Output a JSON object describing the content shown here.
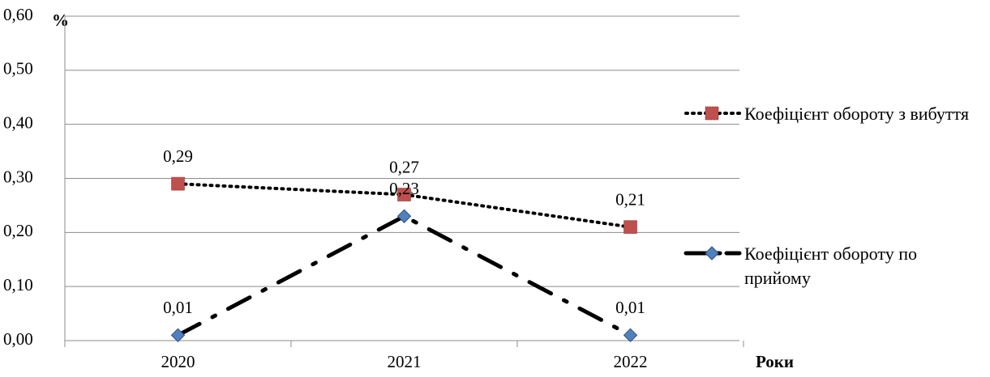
{
  "chart_data": {
    "type": "line",
    "y_unit": "%",
    "x_label": "Роки",
    "categories": [
      "2020",
      "2021",
      "2022"
    ],
    "series": [
      {
        "name": "Коефіцієнт обороту з вибуття",
        "color": "#c0504d",
        "line_color": "#000000",
        "linestyle": "dotted",
        "marker": "square",
        "values": [
          0.29,
          0.27,
          0.21
        ],
        "value_labels": [
          "0,29",
          "0,27",
          "0,21"
        ]
      },
      {
        "name": "Коефіцієнт обороту по прийому",
        "color": "#4f81bd",
        "line_color": "#000000",
        "linestyle": "dashdot",
        "marker": "diamond",
        "values": [
          0.01,
          0.23,
          0.01
        ],
        "value_labels": [
          "0,01",
          "0,23",
          "0,01"
        ]
      }
    ],
    "ylim": [
      0,
      0.6
    ],
    "yticks": [
      {
        "value": 0,
        "label": "0,00"
      },
      {
        "value": 0.1,
        "label": "0,10"
      },
      {
        "value": 0.2,
        "label": "0,20"
      },
      {
        "value": 0.3,
        "label": "0,30"
      },
      {
        "value": 0.4,
        "label": "0,40"
      },
      {
        "value": 0.5,
        "label": "0,50"
      },
      {
        "value": 0.6,
        "label": "0,60"
      }
    ],
    "grid": true,
    "legend": "right"
  }
}
